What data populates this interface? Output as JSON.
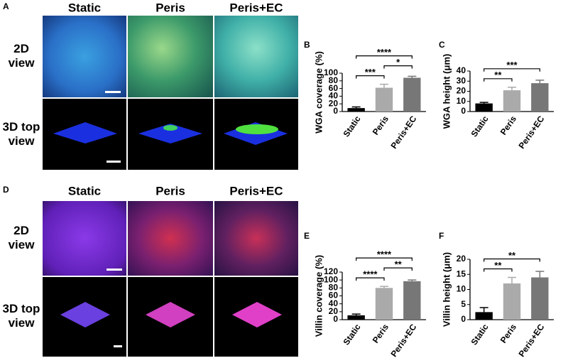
{
  "panels": {
    "top": {
      "label": "A",
      "columns": [
        "Static",
        "Peris",
        "Peris+EC"
      ],
      "rows": [
        "2D\nview",
        "3D top\nview"
      ]
    },
    "bottom": {
      "label": "D",
      "columns": [
        "Static",
        "Peris",
        "Peris+EC"
      ],
      "rows": [
        "2D\nview",
        "3D top\nview"
      ]
    }
  },
  "chart_data": [
    {
      "type": "bar",
      "label": "B",
      "ylabel": "WGA coverage (%)",
      "categories": [
        "Static",
        "Peris",
        "Peris+EC"
      ],
      "values": [
        9,
        62,
        88
      ],
      "errors": [
        3,
        9,
        4
      ],
      "colors": [
        "#000000",
        "#aaaaaa",
        "#777777"
      ],
      "ylim": [
        0,
        100
      ],
      "yticks": [
        0,
        20,
        40,
        60,
        80,
        100
      ],
      "annotations": [
        {
          "label": "***",
          "from": 0,
          "to": 1
        },
        {
          "label": "*",
          "from": 1,
          "to": 2
        },
        {
          "label": "****",
          "from": 0,
          "to": 2
        }
      ]
    },
    {
      "type": "bar",
      "label": "C",
      "ylabel": "WGA height (μm)",
      "categories": [
        "Static",
        "Peris",
        "Peris+EC"
      ],
      "values": [
        8,
        21,
        28
      ],
      "errors": [
        1,
        3,
        3
      ],
      "colors": [
        "#000000",
        "#aaaaaa",
        "#777777"
      ],
      "ylim": [
        0,
        40
      ],
      "yticks": [
        0,
        10,
        20,
        30,
        40
      ],
      "annotations": [
        {
          "label": "**",
          "from": 0,
          "to": 1
        },
        {
          "label": "***",
          "from": 0,
          "to": 2
        }
      ]
    },
    {
      "type": "bar",
      "label": "E",
      "ylabel": "Villin coverage (%)",
      "categories": [
        "Static",
        "Peris",
        "Peris+EC"
      ],
      "values": [
        11,
        80,
        97
      ],
      "errors": [
        3,
        4,
        3
      ],
      "colors": [
        "#000000",
        "#aaaaaa",
        "#777777"
      ],
      "ylim": [
        0,
        120
      ],
      "yticks": [
        0,
        20,
        40,
        60,
        80,
        100,
        120
      ],
      "annotations": [
        {
          "label": "****",
          "from": 0,
          "to": 1
        },
        {
          "label": "**",
          "from": 1,
          "to": 2
        },
        {
          "label": "****",
          "from": 0,
          "to": 2
        }
      ]
    },
    {
      "type": "bar",
      "label": "F",
      "ylabel": "Villin height (μm)",
      "categories": [
        "Static",
        "Peris",
        "Peris+EC"
      ],
      "values": [
        2.5,
        12,
        14
      ],
      "errors": [
        1.5,
        2,
        2
      ],
      "colors": [
        "#000000",
        "#aaaaaa",
        "#777777"
      ],
      "ylim": [
        0,
        20
      ],
      "yticks": [
        0,
        5,
        10,
        15,
        20
      ],
      "annotations": [
        {
          "label": "**",
          "from": 0,
          "to": 1
        },
        {
          "label": "**",
          "from": 0,
          "to": 2
        }
      ]
    }
  ]
}
